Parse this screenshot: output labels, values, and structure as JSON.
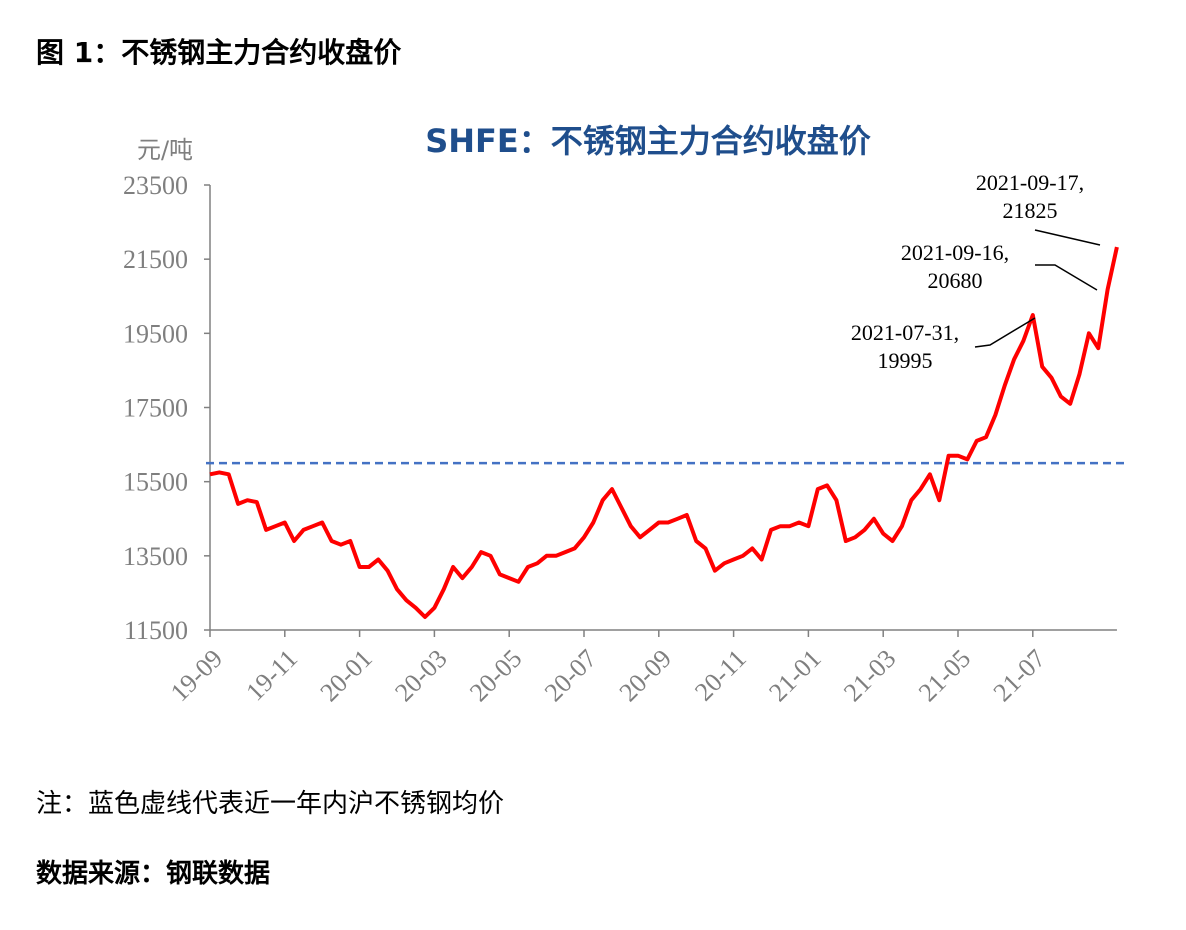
{
  "page_title": "图 1：不锈钢主力合约收盘价",
  "chart_data": {
    "type": "line",
    "title": "SHFE：不锈钢主力合约收盘价",
    "y_unit": "元/吨",
    "categories": [
      "19-09",
      null,
      null,
      null,
      null,
      null,
      null,
      null,
      "19-11",
      null,
      null,
      null,
      null,
      null,
      null,
      null,
      "20-01",
      null,
      null,
      null,
      null,
      null,
      null,
      null,
      "20-03",
      null,
      null,
      null,
      null,
      null,
      null,
      null,
      "20-05",
      null,
      null,
      null,
      null,
      null,
      null,
      null,
      "20-07",
      null,
      null,
      null,
      null,
      null,
      null,
      null,
      "20-09",
      null,
      null,
      null,
      null,
      null,
      null,
      null,
      "20-11",
      null,
      null,
      null,
      null,
      null,
      null,
      null,
      "21-01",
      null,
      null,
      null,
      null,
      null,
      null,
      null,
      "21-03",
      null,
      null,
      null,
      null,
      null,
      null,
      null,
      "21-05",
      null,
      null,
      null,
      null,
      null,
      null,
      null,
      "21-07",
      null,
      null,
      null,
      null,
      null,
      null,
      null,
      null,
      null
    ],
    "series": [
      {
        "color": "#ff0000",
        "values": [
          15700,
          15750,
          15700,
          14900,
          15000,
          14950,
          14200,
          14300,
          14400,
          13900,
          14200,
          14300,
          14400,
          13900,
          13800,
          13900,
          13200,
          13200,
          13400,
          13100,
          12600,
          12300,
          12100,
          11850,
          12100,
          12600,
          13200,
          12900,
          13200,
          13600,
          13500,
          13000,
          12900,
          12800,
          13200,
          13300,
          13500,
          13500,
          13600,
          13700,
          14000,
          14400,
          15000,
          15300,
          14800,
          14300,
          14000,
          14200,
          14400,
          14400,
          14500,
          14600,
          13900,
          13700,
          13100,
          13300,
          13400,
          13500,
          13700,
          13400,
          14200,
          14300,
          14300,
          14400,
          14300,
          15300,
          15400,
          15000,
          13900,
          14000,
          14200,
          14500,
          14100,
          13900,
          14300,
          15000,
          15300,
          15700,
          15000,
          16200,
          16200,
          16100,
          16600,
          16700,
          17300,
          18100,
          18800,
          19300,
          19995,
          18600,
          18300,
          17800,
          17600,
          18400,
          19500,
          19100,
          20680,
          21825
        ]
      }
    ],
    "reference_line": {
      "value": 16000,
      "color": "#4472c4",
      "style": "dashed"
    },
    "ylim": [
      11500,
      23500
    ],
    "yticks": [
      11500,
      13500,
      15500,
      17500,
      19500,
      21500,
      23500
    ],
    "annotations": [
      [
        "2021-07-31,",
        "19995"
      ],
      [
        "2021-09-16,",
        "20680"
      ],
      [
        "2021-09-17,",
        "21825"
      ]
    ]
  },
  "note": "注：蓝色虚线代表近一年内沪不锈钢均价",
  "source": "数据来源：钢联数据"
}
